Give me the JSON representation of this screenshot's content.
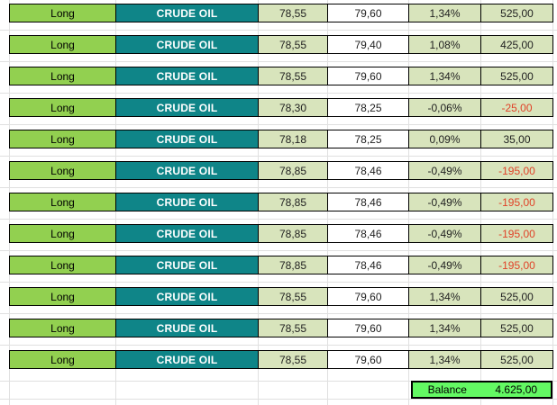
{
  "table": {
    "rows": [
      {
        "position": "Long",
        "instrument": "CRUDE OIL",
        "entry": "78,55",
        "exit": "79,60",
        "change": "1,34%",
        "result": "525,00",
        "loss": false
      },
      {
        "position": "Long",
        "instrument": "CRUDE OIL",
        "entry": "78,55",
        "exit": "79,40",
        "change": "1,08%",
        "result": "425,00",
        "loss": false
      },
      {
        "position": "Long",
        "instrument": "CRUDE OIL",
        "entry": "78,55",
        "exit": "79,60",
        "change": "1,34%",
        "result": "525,00",
        "loss": false
      },
      {
        "position": "Long",
        "instrument": "CRUDE OIL",
        "entry": "78,30",
        "exit": "78,25",
        "change": "-0,06%",
        "result": "-25,00",
        "loss": true
      },
      {
        "position": "Long",
        "instrument": "CRUDE OIL",
        "entry": "78,18",
        "exit": "78,25",
        "change": "0,09%",
        "result": "35,00",
        "loss": false
      },
      {
        "position": "Long",
        "instrument": "CRUDE OIL",
        "entry": "78,85",
        "exit": "78,46",
        "change": "-0,49%",
        "result": "-195,00",
        "loss": true
      },
      {
        "position": "Long",
        "instrument": "CRUDE OIL",
        "entry": "78,85",
        "exit": "78,46",
        "change": "-0,49%",
        "result": "-195,00",
        "loss": true
      },
      {
        "position": "Long",
        "instrument": "CRUDE OIL",
        "entry": "78,85",
        "exit": "78,46",
        "change": "-0,49%",
        "result": "-195,00",
        "loss": true
      },
      {
        "position": "Long",
        "instrument": "CRUDE OIL",
        "entry": "78,85",
        "exit": "78,46",
        "change": "-0,49%",
        "result": "-195,00",
        "loss": true
      },
      {
        "position": "Long",
        "instrument": "CRUDE OIL",
        "entry": "78,55",
        "exit": "79,60",
        "change": "1,34%",
        "result": "525,00",
        "loss": false
      },
      {
        "position": "Long",
        "instrument": "CRUDE OIL",
        "entry": "78,55",
        "exit": "79,60",
        "change": "1,34%",
        "result": "525,00",
        "loss": false
      },
      {
        "position": "Long",
        "instrument": "CRUDE OIL",
        "entry": "78,55",
        "exit": "79,60",
        "change": "1,34%",
        "result": "525,00",
        "loss": false
      }
    ]
  },
  "balance": {
    "label": "Balance",
    "value": "4.625,00"
  },
  "colors": {
    "long_green": "#92D050",
    "instrument_teal": "#0F8588",
    "row_light_green": "#D8E4BC",
    "loss_red": "#E04228",
    "balance_green": "#63F963"
  }
}
